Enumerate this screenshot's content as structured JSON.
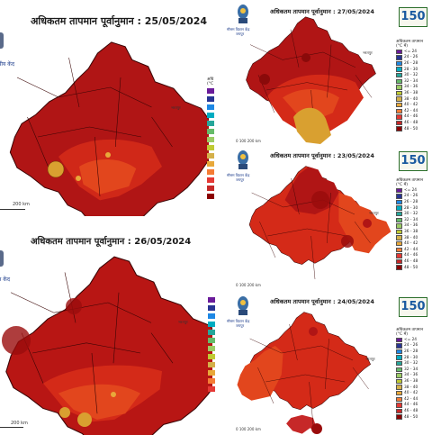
{
  "panels": {
    "p25": {
      "title": "अधिकतम तापमान पूर्वानुमान :   25/05/2024",
      "scale": "200 km",
      "logo": "वीय केंद",
      "city": "भरतपुर"
    },
    "p26": {
      "title": "अधिकतम तापमान पूर्वानुमान :   26/05/2024",
      "scale": "200 km",
      "logo": "न केंद",
      "city": "भरतपुर"
    },
    "p27": {
      "title": "अधिकतम तापमान पूर्वानुमान :   27/05/2024",
      "scale": "0  100  200 km",
      "logo": "मौसम विज्ञान केंद्र",
      "logo2": "जयपुर",
      "city": "भरतपुर"
    },
    "p23": {
      "title": "अधिकतम तापमान पूर्वानुमान :   23/05/2024",
      "scale": "0  100  200 km",
      "logo": "मौसम विज्ञान केंद्र",
      "logo2": "जयपुर",
      "city": "भरतपुर"
    },
    "p24": {
      "title": "अधिकतम तापमान पूर्वानुमान :   24/05/2024",
      "scale": "0  100  200 km",
      "logo": "मौसम विज्ञान केंद्र",
      "logo2": "जयपुर",
      "city": "भरतपुर"
    }
  },
  "legend": {
    "title": "अधिकतम तापमान",
    "unit": "(°C में)",
    "ranges": [
      "<= 24",
      "24 - 26",
      "26 - 28",
      "28 - 30",
      "30 - 32",
      "32 - 34",
      "34 - 36",
      "36 - 38",
      "38 - 40",
      "40 - 42",
      "42 - 44",
      "44 - 46",
      "46 - 48",
      "48 - 50"
    ],
    "colors": [
      "#6a1b9a",
      "#283593",
      "#1e88e5",
      "#00acc1",
      "#26a69a",
      "#66bb6a",
      "#9ccc65",
      "#c0ca33",
      "#d4b04a",
      "#e8a83a",
      "#f57c35",
      "#e53935",
      "#c62828",
      "#8b0000"
    ],
    "partial_title": "अधि",
    "partial_unit": "(°C"
  },
  "imd150": "150",
  "colors": {
    "deep": "#a50f0f",
    "mid": "#c91c14",
    "orange": "#e2461d",
    "gold": "#d9a030",
    "border": "#3a0505"
  }
}
